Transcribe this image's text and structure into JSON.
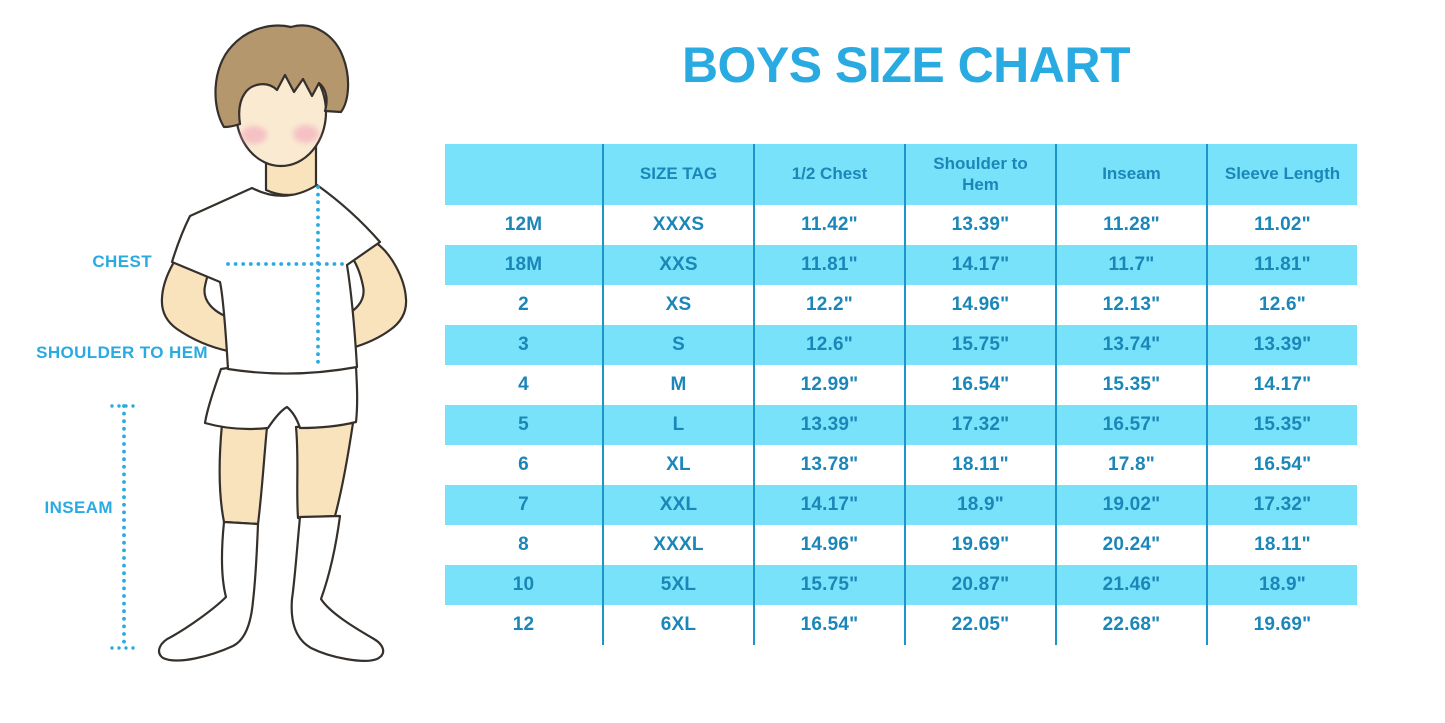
{
  "title": "BOYS SIZE CHART",
  "figure": {
    "description": "illustration of a boy in white t-shirt, shorts and knee socks with measurement guides",
    "labels": {
      "chest": "CHEST",
      "shoulder_to_hem": "SHOULDER TO HEM",
      "inseam": "INSEAM"
    }
  },
  "chart_data": {
    "type": "table",
    "title": "BOYS SIZE CHART",
    "units": "inches",
    "columns": [
      "",
      "SIZE TAG",
      "1/2 Chest",
      "Shoulder to Hem",
      "Inseam",
      "Sleeve Length"
    ],
    "rows": [
      [
        "12M",
        "XXXS",
        "11.42\"",
        "13.39\"",
        "11.28\"",
        "11.02\""
      ],
      [
        "18M",
        "XXS",
        "11.81\"",
        "14.17\"",
        "11.7\"",
        "11.81\""
      ],
      [
        "2",
        "XS",
        "12.2\"",
        "14.96\"",
        "12.13\"",
        "12.6\""
      ],
      [
        "3",
        "S",
        "12.6\"",
        "15.75\"",
        "13.74\"",
        "13.39\""
      ],
      [
        "4",
        "M",
        "12.99\"",
        "16.54\"",
        "15.35\"",
        "14.17\""
      ],
      [
        "5",
        "L",
        "13.39\"",
        "17.32\"",
        "16.57\"",
        "15.35\""
      ],
      [
        "6",
        "XL",
        "13.78\"",
        "18.11\"",
        "17.8\"",
        "16.54\""
      ],
      [
        "7",
        "XXL",
        "14.17\"",
        "18.9\"",
        "19.02\"",
        "17.32\""
      ],
      [
        "8",
        "XXXL",
        "14.96\"",
        "19.69\"",
        "20.24\"",
        "18.11\""
      ],
      [
        "10",
        "5XL",
        "15.75\"",
        "20.87\"",
        "21.46\"",
        "18.9\""
      ],
      [
        "12",
        "6XL",
        "16.54\"",
        "22.05\"",
        "22.68\"",
        "19.69\""
      ]
    ],
    "row_shading": "header and alternating rows light blue, others white",
    "grid": "vertical column dividers only"
  },
  "colors": {
    "accent": "#29ABE2",
    "row-blue": "#78E2FA",
    "line-blue": "#1E95C8",
    "text-blue": "#1B86B8",
    "skin": "#F8E3BD",
    "face": "#FAEAD2",
    "hair": "#B4976D",
    "blush": "#F2A9BC",
    "outline": "#35302B"
  }
}
